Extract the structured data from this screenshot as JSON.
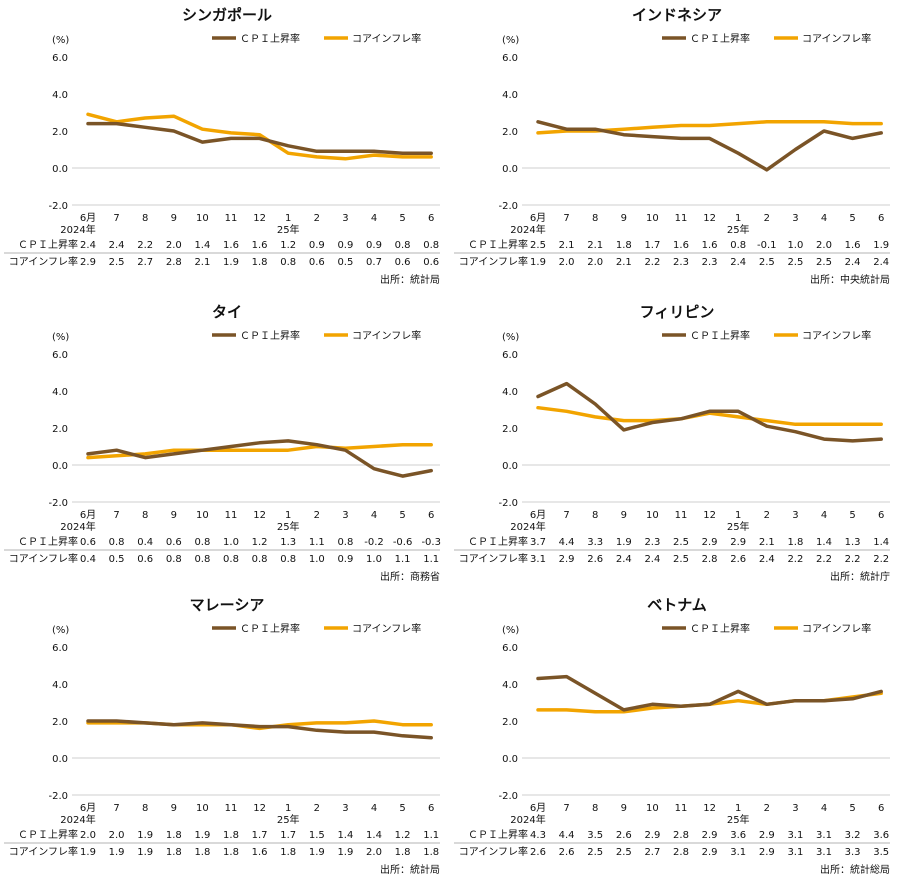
{
  "colors": {
    "cpi": "#7a5427",
    "core": "#f2a400"
  },
  "common": {
    "yunit": "(%)",
    "legend_cpi": "ＣＰＩ上昇率",
    "legend_core": "コアインフレ率",
    "row_cpi": "ＣＰＩ上昇率",
    "row_core": "コアインフレ率",
    "year_label_1": "2024年",
    "year_label_2": "25年"
  },
  "chart_data": [
    {
      "type": "line",
      "title": "シンガポール",
      "categories": [
        "6月",
        "7",
        "8",
        "9",
        "10",
        "11",
        "12",
        "1",
        "2",
        "3",
        "4",
        "5",
        "6"
      ],
      "ylim": [
        -2.0,
        6.0
      ],
      "yticks": [
        "6.0",
        "4.0",
        "2.0",
        "0.0",
        "-2.0"
      ],
      "series": [
        {
          "name": "ＣＰＩ上昇率",
          "values": [
            2.4,
            2.4,
            2.2,
            2.0,
            1.4,
            1.6,
            1.6,
            1.2,
            0.9,
            0.9,
            0.9,
            0.8,
            0.8
          ],
          "labels": [
            "2.4",
            "2.4",
            "2.2",
            "2.0",
            "1.4",
            "1.6",
            "1.6",
            "1.2",
            "0.9",
            "0.9",
            "0.9",
            "0.8",
            "0.8"
          ]
        },
        {
          "name": "コアインフレ率",
          "values": [
            2.9,
            2.5,
            2.7,
            2.8,
            2.1,
            1.9,
            1.8,
            0.8,
            0.6,
            0.5,
            0.7,
            0.6,
            0.6
          ],
          "labels": [
            "2.9",
            "2.5",
            "2.7",
            "2.8",
            "2.1",
            "1.9",
            "1.8",
            "0.8",
            "0.6",
            "0.5",
            "0.7",
            "0.6",
            "0.6"
          ]
        }
      ],
      "source": "出所：統計局"
    },
    {
      "type": "line",
      "title": "インドネシア",
      "categories": [
        "6月",
        "7",
        "8",
        "9",
        "10",
        "11",
        "12",
        "1",
        "2",
        "3",
        "4",
        "5",
        "6"
      ],
      "ylim": [
        -2.0,
        6.0
      ],
      "yticks": [
        "6.0",
        "4.0",
        "2.0",
        "0.0",
        "-2.0"
      ],
      "series": [
        {
          "name": "ＣＰＩ上昇率",
          "values": [
            2.5,
            2.1,
            2.1,
            1.8,
            1.7,
            1.6,
            1.6,
            0.8,
            -0.1,
            1.0,
            2.0,
            1.6,
            1.9
          ],
          "labels": [
            "2.5",
            "2.1",
            "2.1",
            "1.8",
            "1.7",
            "1.6",
            "1.6",
            "0.8",
            "-0.1",
            "1.0",
            "2.0",
            "1.6",
            "1.9"
          ]
        },
        {
          "name": "コアインフレ率",
          "values": [
            1.9,
            2.0,
            2.0,
            2.1,
            2.2,
            2.3,
            2.3,
            2.4,
            2.5,
            2.5,
            2.5,
            2.4,
            2.4
          ],
          "labels": [
            "1.9",
            "2.0",
            "2.0",
            "2.1",
            "2.2",
            "2.3",
            "2.3",
            "2.4",
            "2.5",
            "2.5",
            "2.5",
            "2.4",
            "2.4"
          ]
        }
      ],
      "source": "出所：中央統計局"
    },
    {
      "type": "line",
      "title": "タイ",
      "categories": [
        "6月",
        "7",
        "8",
        "9",
        "10",
        "11",
        "12",
        "1",
        "2",
        "3",
        "4",
        "5",
        "6"
      ],
      "ylim": [
        -2.0,
        6.0
      ],
      "yticks": [
        "6.0",
        "4.0",
        "2.0",
        "0.0",
        "-2.0"
      ],
      "series": [
        {
          "name": "ＣＰＩ上昇率",
          "values": [
            0.6,
            0.8,
            0.4,
            0.6,
            0.8,
            1.0,
            1.2,
            1.3,
            1.1,
            0.8,
            -0.2,
            -0.6,
            -0.3
          ],
          "labels": [
            "0.6",
            "0.8",
            "0.4",
            "0.6",
            "0.8",
            "1.0",
            "1.2",
            "1.3",
            "1.1",
            "0.8",
            "-0.2",
            "-0.6",
            "-0.3"
          ]
        },
        {
          "name": "コアインフレ率",
          "values": [
            0.4,
            0.5,
            0.6,
            0.8,
            0.8,
            0.8,
            0.8,
            0.8,
            1.0,
            0.9,
            1.0,
            1.1,
            1.1
          ],
          "labels": [
            "0.4",
            "0.5",
            "0.6",
            "0.8",
            "0.8",
            "0.8",
            "0.8",
            "0.8",
            "1.0",
            "0.9",
            "1.0",
            "1.1",
            "1.1"
          ]
        }
      ],
      "source": "出所：商務省"
    },
    {
      "type": "line",
      "title": "フィリピン",
      "categories": [
        "6月",
        "7",
        "8",
        "9",
        "10",
        "11",
        "12",
        "1",
        "2",
        "3",
        "4",
        "5",
        "6"
      ],
      "ylim": [
        -2.0,
        6.0
      ],
      "yticks": [
        "6.0",
        "4.0",
        "2.0",
        "0.0",
        "-2.0"
      ],
      "series": [
        {
          "name": "ＣＰＩ上昇率",
          "values": [
            3.7,
            4.4,
            3.3,
            1.9,
            2.3,
            2.5,
            2.9,
            2.9,
            2.1,
            1.8,
            1.4,
            1.3,
            1.4
          ],
          "labels": [
            "3.7",
            "4.4",
            "3.3",
            "1.9",
            "2.3",
            "2.5",
            "2.9",
            "2.9",
            "2.1",
            "1.8",
            "1.4",
            "1.3",
            "1.4"
          ]
        },
        {
          "name": "コアインフレ率",
          "values": [
            3.1,
            2.9,
            2.6,
            2.4,
            2.4,
            2.5,
            2.8,
            2.6,
            2.4,
            2.2,
            2.2,
            2.2,
            2.2
          ],
          "labels": [
            "3.1",
            "2.9",
            "2.6",
            "2.4",
            "2.4",
            "2.5",
            "2.8",
            "2.6",
            "2.4",
            "2.2",
            "2.2",
            "2.2",
            "2.2"
          ]
        }
      ],
      "source": "出所：統計庁"
    },
    {
      "type": "line",
      "title": "マレーシア",
      "categories": [
        "6月",
        "7",
        "8",
        "9",
        "10",
        "11",
        "12",
        "1",
        "2",
        "3",
        "4",
        "5",
        "6"
      ],
      "ylim": [
        -2.0,
        6.0
      ],
      "yticks": [
        "6.0",
        "4.0",
        "2.0",
        "0.0",
        "-2.0"
      ],
      "series": [
        {
          "name": "ＣＰＩ上昇率",
          "values": [
            2.0,
            2.0,
            1.9,
            1.8,
            1.9,
            1.8,
            1.7,
            1.7,
            1.5,
            1.4,
            1.4,
            1.2,
            1.1
          ],
          "labels": [
            "2.0",
            "2.0",
            "1.9",
            "1.8",
            "1.9",
            "1.8",
            "1.7",
            "1.7",
            "1.5",
            "1.4",
            "1.4",
            "1.2",
            "1.1"
          ]
        },
        {
          "name": "コアインフレ率",
          "values": [
            1.9,
            1.9,
            1.9,
            1.8,
            1.8,
            1.8,
            1.6,
            1.8,
            1.9,
            1.9,
            2.0,
            1.8,
            1.8
          ],
          "labels": [
            "1.9",
            "1.9",
            "1.9",
            "1.8",
            "1.8",
            "1.8",
            "1.6",
            "1.8",
            "1.9",
            "1.9",
            "2.0",
            "1.8",
            "1.8"
          ]
        }
      ],
      "source": "出所：統計局"
    },
    {
      "type": "line",
      "title": "ベトナム",
      "categories": [
        "6月",
        "7",
        "8",
        "9",
        "10",
        "11",
        "12",
        "1",
        "2",
        "3",
        "4",
        "5",
        "6"
      ],
      "ylim": [
        -2.0,
        6.0
      ],
      "yticks": [
        "6.0",
        "4.0",
        "2.0",
        "0.0",
        "-2.0"
      ],
      "series": [
        {
          "name": "ＣＰＩ上昇率",
          "values": [
            4.3,
            4.4,
            3.5,
            2.6,
            2.9,
            2.8,
            2.9,
            3.6,
            2.9,
            3.1,
            3.1,
            3.2,
            3.6
          ],
          "labels": [
            "4.3",
            "4.4",
            "3.5",
            "2.6",
            "2.9",
            "2.8",
            "2.9",
            "3.6",
            "2.9",
            "3.1",
            "3.1",
            "3.2",
            "3.6"
          ]
        },
        {
          "name": "コアインフレ率",
          "values": [
            2.6,
            2.6,
            2.5,
            2.5,
            2.7,
            2.8,
            2.9,
            3.1,
            2.9,
            3.1,
            3.1,
            3.3,
            3.5
          ],
          "labels": [
            "2.6",
            "2.6",
            "2.5",
            "2.5",
            "2.7",
            "2.8",
            "2.9",
            "3.1",
            "2.9",
            "3.1",
            "3.1",
            "3.3",
            "3.5"
          ]
        }
      ],
      "source": "出所：統計総局"
    }
  ]
}
